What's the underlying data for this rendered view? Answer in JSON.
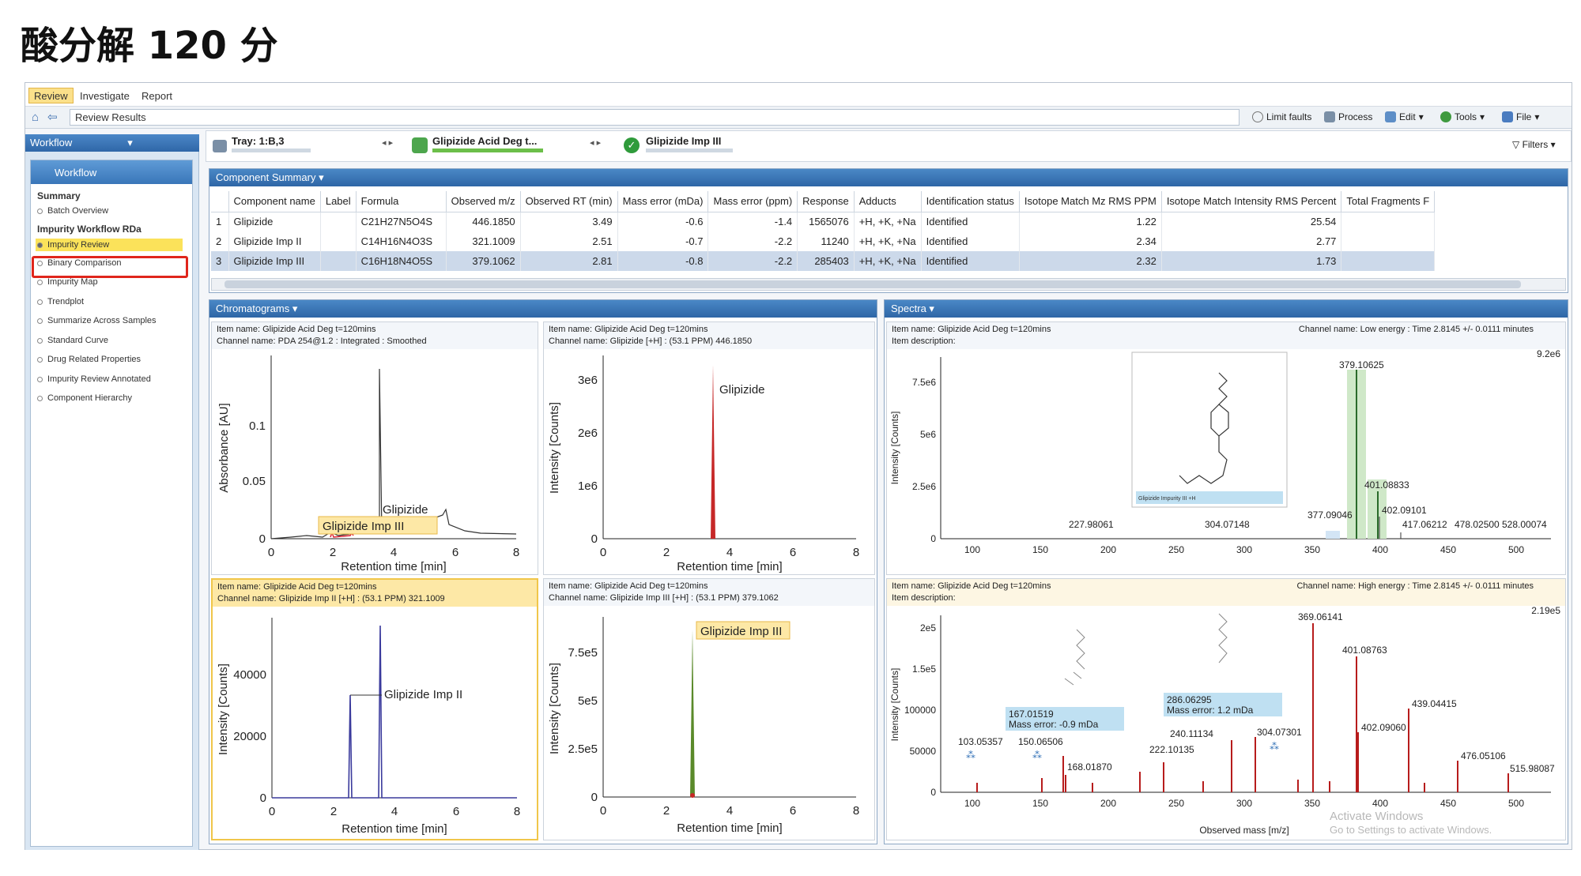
{
  "page_title": "酸分解 120 分",
  "ribbon": {
    "tabs": [
      "Review",
      "Investigate",
      "Report"
    ]
  },
  "nav": {
    "breadcrumb": "Review Results"
  },
  "toolbar": {
    "limit_faults": "Limit faults",
    "process": "Process",
    "edit": "Edit",
    "tools": "Tools",
    "file": "File",
    "filters": "Filters"
  },
  "left": {
    "workflow_header": "Workflow",
    "workflow_title": "Workflow",
    "summary": "Summary",
    "summary_items": [
      "Batch Overview"
    ],
    "group": "Impurity Workflow RDa",
    "items": [
      "Impurity Review",
      "Binary Comparison",
      "Impurity Map",
      "Trendplot",
      "Summarize Across Samples",
      "Standard Curve",
      "Drug Related Properties",
      "Impurity Review Annotated",
      "Component Hierarchy"
    ]
  },
  "tray": {
    "tray_label": "Tray: 1:B,3",
    "sample_label": "Glipizide Acid Deg t...",
    "component_label": "Glipizide Imp III"
  },
  "component_summary": {
    "title": "Component Summary",
    "columns": [
      "Component name",
      "Label",
      "Formula",
      "Observed m/z",
      "Observed RT (min)",
      "Mass error (mDa)",
      "Mass error (ppm)",
      "Response",
      "Adducts",
      "Identification status",
      "Isotope Match Mz RMS PPM",
      "Isotope Match Intensity RMS Percent",
      "Total Fragments F"
    ],
    "rows": [
      [
        "1",
        "Glipizide",
        "",
        "C21H27N5O4S",
        "446.1850",
        "3.49",
        "-0.6",
        "-1.4",
        "1565076",
        "+H, +K, +Na",
        "Identified",
        "1.22",
        "25.54",
        ""
      ],
      [
        "2",
        "Glipizide Imp II",
        "",
        "C14H16N4O3S",
        "321.1009",
        "2.51",
        "-0.7",
        "-2.2",
        "11240",
        "+H, +K, +Na",
        "Identified",
        "2.34",
        "2.77",
        ""
      ],
      [
        "3",
        "Glipizide Imp III",
        "",
        "C16H18N4O5S",
        "379.1062",
        "2.81",
        "-0.8",
        "-2.2",
        "285403",
        "+H, +K, +Na",
        "Identified",
        "2.32",
        "1.73",
        ""
      ]
    ]
  },
  "chromatograms": {
    "title": "Chromatograms",
    "plots": [
      {
        "item": "Item name: Glipizide Acid Deg t=120mins",
        "channel": "Channel name: PDA 254@1.2 : Integrated : Smoothed",
        "ylabel": "Absorbance [AU]",
        "xlabel": "Retention time [min]",
        "yticks": [
          "0",
          "0.05",
          "0.1"
        ],
        "xticks": [
          "0",
          "2",
          "4",
          "6",
          "8"
        ],
        "peak_labels": [
          "Glipizide",
          "Glipizide Imp III"
        ]
      },
      {
        "item": "Item name: Glipizide Acid Deg t=120mins",
        "channel": "Channel name: Glipizide [+H] : (53.1 PPM) 446.1850",
        "ylabel": "Intensity [Counts]",
        "xlabel": "Retention time [min]",
        "yticks": [
          "0",
          "1e6",
          "2e6",
          "3e6"
        ],
        "xticks": [
          "0",
          "2",
          "4",
          "6",
          "8"
        ],
        "peak_labels": [
          "Glipizide"
        ]
      },
      {
        "item": "Item name: Glipizide Acid Deg t=120mins",
        "channel": "Channel name: Glipizide Imp II [+H] : (53.1 PPM) 321.1009",
        "ylabel": "Intensity [Counts]",
        "xlabel": "Retention time [min]",
        "yticks": [
          "0",
          "20000",
          "40000"
        ],
        "xticks": [
          "0",
          "2",
          "4",
          "6",
          "8"
        ],
        "peak_labels": [
          "Glipizide Imp II"
        ]
      },
      {
        "item": "Item name: Glipizide Acid Deg t=120mins",
        "channel": "Channel name: Glipizide Imp III [+H] : (53.1 PPM) 379.1062",
        "ylabel": "Intensity [Counts]",
        "xlabel": "Retention time [min]",
        "yticks": [
          "0",
          "2.5e5",
          "5e5",
          "7.5e5"
        ],
        "xticks": [
          "0",
          "2",
          "4",
          "6",
          "8"
        ],
        "peak_labels": [
          "Glipizide Imp III"
        ]
      }
    ]
  },
  "spectra": {
    "title": "Spectra",
    "low": {
      "item": "Item name: Glipizide Acid Deg t=120mins",
      "desc": "Item description:",
      "channel": "Channel name: Low energy : Time 2.8145 +/- 0.0111 minutes",
      "max": "9.2e6",
      "ylabel": "Intensity [Counts]",
      "yticks": [
        "0",
        "2.5e6",
        "5e6",
        "7.5e6"
      ],
      "xticks": [
        "100",
        "150",
        "200",
        "250",
        "300",
        "350",
        "400",
        "450",
        "500"
      ],
      "structure_label": "Glipizide Impurity III +H",
      "peaks": [
        "379.10625",
        "401.08833",
        "402.09101",
        "417.06212",
        "478.02500",
        "528.00074",
        "227.98061",
        "304.07148",
        "377.09046"
      ]
    },
    "high": {
      "item": "Item name: Glipizide Acid Deg t=120mins",
      "desc": "Item description:",
      "channel": "Channel name: High energy : Time 2.8145 +/- 0.0111 minutes",
      "max": "2.19e5",
      "ylabel": "Intensity [Counts]",
      "xlabel": "Observed mass [m/z]",
      "yticks": [
        "0",
        "50000",
        "100000",
        "1.5e5",
        "2e5"
      ],
      "xticks": [
        "100",
        "150",
        "200",
        "250",
        "300",
        "350",
        "400",
        "450",
        "500"
      ],
      "peaks": [
        "369.06141",
        "401.08763",
        "439.04415",
        "402.09060",
        "476.05106",
        "515.98087",
        "304.07301",
        "286.06295",
        "240.11134",
        "222.10135",
        "167.01519",
        "150.06506",
        "168.01870",
        "103.05357"
      ],
      "annot1": [
        "167.01519",
        "Mass error: -0.9 mDa"
      ],
      "annot2": [
        "286.06295",
        "Mass error: 1.2 mDa"
      ]
    }
  },
  "watermark": [
    "Activate Windows",
    "Go to Settings to activate Windows."
  ]
}
